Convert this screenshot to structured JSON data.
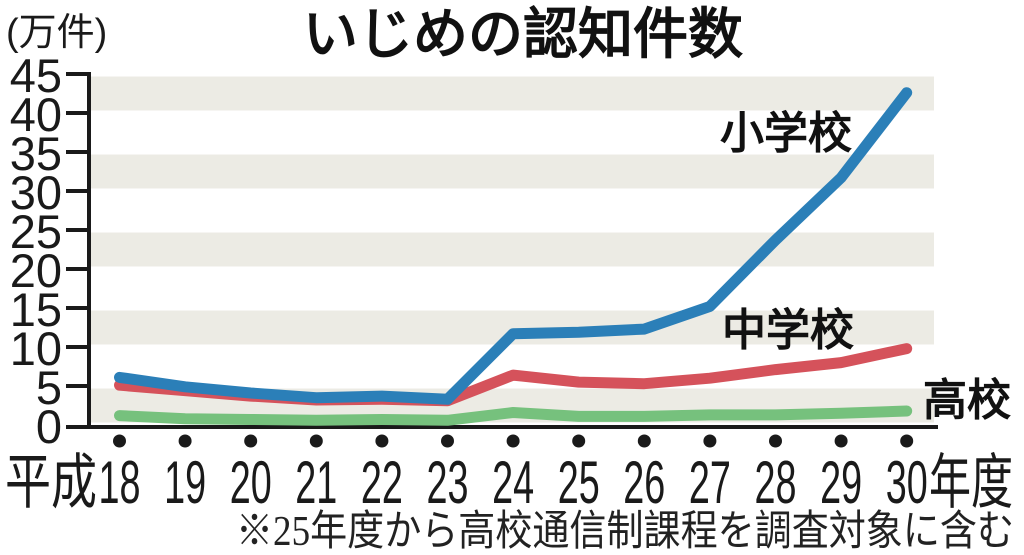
{
  "chart_data": {
    "type": "line",
    "title": "いじめの認知件数",
    "y_unit_label": "(万件)",
    "unit": "万件",
    "ylim": [
      0,
      45
    ],
    "ytick_step": 5,
    "yticks": [
      45,
      40,
      35,
      30,
      25,
      20,
      15,
      10,
      5,
      0
    ],
    "x_axis": {
      "era_prefix": "平成",
      "years": [
        "18",
        "19",
        "20",
        "21",
        "22",
        "23",
        "24",
        "25",
        "26",
        "27",
        "28",
        "29",
        "30"
      ],
      "suffix": "年度"
    },
    "x_categories": [
      "平成18",
      "19",
      "20",
      "21",
      "22",
      "23",
      "24",
      "25",
      "26",
      "27",
      "28",
      "29",
      "30年度"
    ],
    "series": [
      {
        "name": "小学校",
        "color": "#2B7FB8",
        "values": [
          6.1,
          4.9,
          4.1,
          3.5,
          3.7,
          3.3,
          11.7,
          11.9,
          12.3,
          15.2,
          23.7,
          31.7,
          42.6
        ]
      },
      {
        "name": "中学校",
        "color": "#D5525B",
        "values": [
          5.1,
          4.4,
          3.7,
          3.2,
          3.3,
          3.1,
          6.4,
          5.5,
          5.3,
          6.0,
          7.1,
          8.0,
          9.8
        ]
      },
      {
        "name": "高校",
        "color": "#76C17D",
        "values": [
          1.2,
          0.8,
          0.7,
          0.6,
          0.7,
          0.6,
          1.6,
          1.1,
          1.1,
          1.3,
          1.3,
          1.5,
          1.8
        ]
      }
    ],
    "annotation": "※25年度から高校通信制課程を調査対象に含む",
    "legend_position": "inline-labels-right",
    "grid": "alternating-horizontal-bands",
    "colors": {
      "band": "#ECEBE4",
      "axis": "#1A1A1A",
      "dot": "#1A1A1A"
    }
  }
}
